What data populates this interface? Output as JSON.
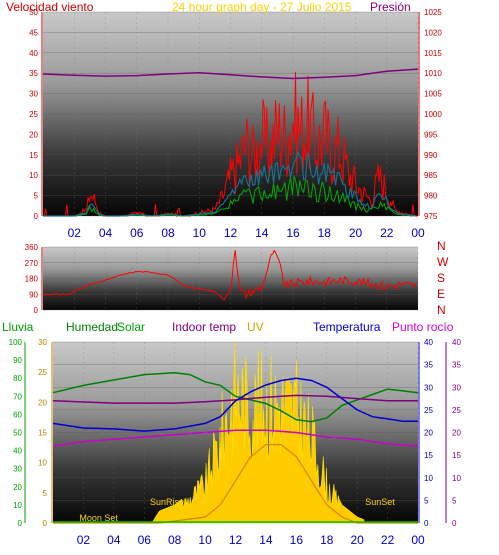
{
  "header": {
    "wind_label": "Velocidad viento",
    "graph_title": "24 hour graph day - 27 Julio 2015",
    "pressure_label": "Presión"
  },
  "compass": [
    "N",
    "W",
    "S",
    "E",
    "N"
  ],
  "legend": {
    "rain": "Lluvia",
    "humidity": "Humedad",
    "solar": "Solar",
    "indoor_temp": "Indoor temp",
    "uv": "UV",
    "temperature": "Temperatura",
    "dew_point": "Punto rocío"
  },
  "annotations": {
    "sunrise": "SunRise",
    "sunset": "SunSet",
    "moonset": "Moon Set"
  },
  "colors": {
    "wind": "#ff0000",
    "wind_avg": "#1c6f8c",
    "wind_green": "#00aa00",
    "pressure": "#800080",
    "direction": "#ff0000",
    "rain": "#00a000",
    "humidity": "#008000",
    "solar": "#00a000",
    "indoor_temp": "#800080",
    "uv": "#ffcc00",
    "temperature": "#0000cc",
    "dew_point": "#cc00cc",
    "axis_red": "#cc0000",
    "axis_blue": "#0000cc"
  },
  "chart_data": [
    {
      "type": "line",
      "title": "24 hour graph day - 27 Julio 2015",
      "x_ticks": [
        "02",
        "04",
        "06",
        "08",
        "10",
        "12",
        "14",
        "16",
        "18",
        "20",
        "22",
        "00"
      ],
      "left_axis": {
        "label": "Velocidad viento",
        "ticks": [
          "0",
          "5",
          "10",
          "15",
          "20",
          "25",
          "30",
          "35",
          "40",
          "45",
          "50"
        ],
        "range": [
          0,
          50
        ]
      },
      "right_axis": {
        "label": "Presión",
        "ticks": [
          "975",
          "980",
          "985",
          "990",
          "995",
          "1000",
          "1005",
          "1010",
          "1015",
          "1020",
          "1025"
        ],
        "range": [
          975,
          1025
        ]
      },
      "series": [
        {
          "name": "Velocidad viento",
          "values": [
            [
              0,
              0
            ],
            [
              2,
              0
            ],
            [
              2.8,
              2
            ],
            [
              3,
              7
            ],
            [
              3.3,
              5
            ],
            [
              3.6,
              1
            ],
            [
              4,
              0
            ],
            [
              5,
              0
            ],
            [
              6,
              1
            ],
            [
              7,
              0
            ],
            [
              8,
              1
            ],
            [
              9,
              0
            ],
            [
              10,
              1
            ],
            [
              11,
              2
            ],
            [
              11.5,
              6
            ],
            [
              12,
              12
            ],
            [
              12.5,
              16
            ],
            [
              13,
              22
            ],
            [
              13.5,
              18
            ],
            [
              14,
              24
            ],
            [
              14.5,
              20
            ],
            [
              15,
              27
            ],
            [
              15.5,
              24
            ],
            [
              16,
              30
            ],
            [
              16.5,
              26
            ],
            [
              17,
              28
            ],
            [
              17.5,
              22
            ],
            [
              18,
              25
            ],
            [
              18.5,
              20
            ],
            [
              19,
              21
            ],
            [
              19.5,
              14
            ],
            [
              20,
              10
            ],
            [
              20.5,
              7
            ],
            [
              21,
              5
            ],
            [
              21.5,
              12
            ],
            [
              22,
              8
            ],
            [
              22.5,
              2
            ],
            [
              23,
              1
            ],
            [
              24,
              0
            ]
          ]
        },
        {
          "name": "Presión",
          "values": [
            [
              0,
              1009.8
            ],
            [
              2,
              1009.5
            ],
            [
              4,
              1009.3
            ],
            [
              6,
              1009.4
            ],
            [
              8,
              1009.8
            ],
            [
              10,
              1010.1
            ],
            [
              12,
              1009.6
            ],
            [
              14,
              1009.1
            ],
            [
              16,
              1008.7
            ],
            [
              18,
              1009.0
            ],
            [
              20,
              1009.4
            ],
            [
              22,
              1010.5
            ],
            [
              24,
              1011.0
            ]
          ]
        }
      ]
    },
    {
      "type": "line",
      "left_axis": {
        "ticks": [
          "0",
          "90",
          "180",
          "270",
          "360"
        ],
        "range": [
          0,
          360
        ]
      },
      "x_ticks": [],
      "series": [
        {
          "name": "",
          "values": [
            [
              0,
              90
            ],
            [
              1,
              90
            ],
            [
              1.8,
              90
            ],
            [
              2,
              110
            ],
            [
              3,
              145
            ],
            [
              4,
              170
            ],
            [
              5,
              200
            ],
            [
              6,
              220
            ],
            [
              7,
              215
            ],
            [
              8,
              200
            ],
            [
              9,
              140
            ],
            [
              10,
              120
            ],
            [
              11,
              105
            ],
            [
              11.6,
              60
            ],
            [
              12,
              120
            ],
            [
              12.3,
              360
            ],
            [
              12.6,
              110
            ],
            [
              13,
              90
            ],
            [
              14,
              130
            ],
            [
              14.7,
              330
            ],
            [
              15,
              300
            ],
            [
              15.5,
              140
            ],
            [
              16,
              150
            ],
            [
              17,
              165
            ],
            [
              18,
              160
            ],
            [
              19,
              170
            ],
            [
              20,
              165
            ],
            [
              21,
              150
            ],
            [
              22,
              135
            ],
            [
              23,
              145
            ],
            [
              24,
              140
            ]
          ]
        }
      ]
    },
    {
      "type": "line",
      "x_ticks": [
        "02",
        "04",
        "06",
        "08",
        "10",
        "12",
        "14",
        "16",
        "18",
        "20",
        "22",
        "00"
      ],
      "left_axis_1": {
        "label": "Lluvia",
        "ticks": [
          "0",
          "10",
          "20",
          "30",
          "40",
          "50",
          "60",
          "70",
          "80",
          "90",
          "100"
        ],
        "range": [
          0,
          100
        ]
      },
      "left_axis_2": {
        "ticks": [
          "0",
          "5",
          "10",
          "15",
          "20",
          "25",
          "30"
        ],
        "range": [
          0,
          30
        ]
      },
      "right_axis_1": {
        "ticks": [
          "0",
          "5",
          "10",
          "15",
          "20",
          "25",
          "30",
          "35",
          "40"
        ],
        "range": [
          0,
          40
        ]
      },
      "right_axis_2": {
        "ticks": [
          "0",
          "5",
          "10",
          "15",
          "20",
          "25",
          "30",
          "35",
          "40"
        ],
        "range": [
          0,
          40
        ]
      },
      "series": [
        {
          "name": "Humedad",
          "values": [
            [
              0,
              72
            ],
            [
              2,
              76
            ],
            [
              4,
              79
            ],
            [
              6,
              82
            ],
            [
              8,
              83
            ],
            [
              9,
              82
            ],
            [
              10,
              78
            ],
            [
              11,
              76
            ],
            [
              12,
              70
            ],
            [
              13,
              68
            ],
            [
              14,
              66
            ],
            [
              15,
              62
            ],
            [
              16,
              57
            ],
            [
              17,
              56
            ],
            [
              18,
              58
            ],
            [
              19,
              65
            ],
            [
              20,
              68
            ],
            [
              21,
              71
            ],
            [
              22,
              74
            ],
            [
              23,
              73
            ],
            [
              24,
              72
            ]
          ]
        },
        {
          "name": "Indoor temp",
          "values": [
            [
              0,
              27
            ],
            [
              4,
              26.5
            ],
            [
              8,
              26.5
            ],
            [
              10,
              26.8
            ],
            [
              12,
              27.2
            ],
            [
              14,
              27.8
            ],
            [
              16,
              28.2
            ],
            [
              18,
              28.0
            ],
            [
              20,
              27.5
            ],
            [
              22,
              27.0
            ],
            [
              24,
              27.0
            ]
          ]
        },
        {
          "name": "Temperatura",
          "values": [
            [
              0,
              22
            ],
            [
              2,
              21
            ],
            [
              4,
              20.8
            ],
            [
              6,
              20.3
            ],
            [
              8,
              20.8
            ],
            [
              10,
              22.0
            ],
            [
              11,
              23.5
            ],
            [
              12,
              27.0
            ],
            [
              13,
              29.0
            ],
            [
              14,
              30.5
            ],
            [
              15,
              31.5
            ],
            [
              16,
              32.0
            ],
            [
              17,
              31.5
            ],
            [
              18,
              30.0
            ],
            [
              19,
              27.5
            ],
            [
              20,
              25.0
            ],
            [
              21,
              23.5
            ],
            [
              22,
              23.0
            ],
            [
              23,
              22.5
            ],
            [
              24,
              22.5
            ]
          ]
        },
        {
          "name": "Punto rocío",
          "values": [
            [
              0,
              17
            ],
            [
              2,
              18
            ],
            [
              4,
              18.5
            ],
            [
              6,
              19
            ],
            [
              8,
              19.5
            ],
            [
              10,
              20
            ],
            [
              12,
              20.5
            ],
            [
              14,
              20.5
            ],
            [
              16,
              20
            ],
            [
              18,
              19
            ],
            [
              20,
              18.5
            ],
            [
              22,
              17.5
            ],
            [
              24,
              17
            ]
          ]
        },
        {
          "name": "Solar",
          "values": [
            [
              0,
              0
            ],
            [
              6.5,
              0
            ],
            [
              7,
              2
            ],
            [
              8,
              3
            ],
            [
              9,
              5
            ],
            [
              10,
              8
            ],
            [
              11,
              18
            ],
            [
              12,
              28
            ],
            [
              13,
              24
            ],
            [
              14,
              26
            ],
            [
              15,
              25
            ],
            [
              16,
              24
            ],
            [
              17,
              18
            ],
            [
              18,
              8
            ],
            [
              19,
              3
            ],
            [
              20,
              1
            ],
            [
              21,
              0
            ],
            [
              24,
              0
            ]
          ]
        },
        {
          "name": "UV",
          "values": [
            [
              0,
              0
            ],
            [
              7,
              0
            ],
            [
              10,
              1
            ],
            [
              11,
              3
            ],
            [
              12,
              7
            ],
            [
              13,
              11
            ],
            [
              14,
              13
            ],
            [
              15,
              13
            ],
            [
              16,
              11
            ],
            [
              17,
              7
            ],
            [
              18,
              3
            ],
            [
              19,
              1
            ],
            [
              20,
              0
            ],
            [
              24,
              0
            ]
          ]
        }
      ]
    }
  ]
}
